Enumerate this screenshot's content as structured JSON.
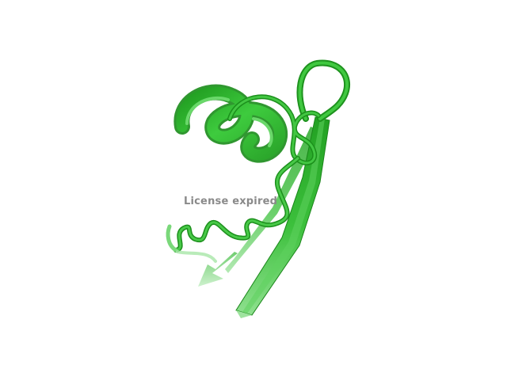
{
  "viewer": {
    "watermark_text": "License expired",
    "background_color": "#ffffff",
    "structure_color": "#2fb52f",
    "structure_highlight": "#7fdc7f",
    "structure_shadow": "#1a7d1a"
  }
}
